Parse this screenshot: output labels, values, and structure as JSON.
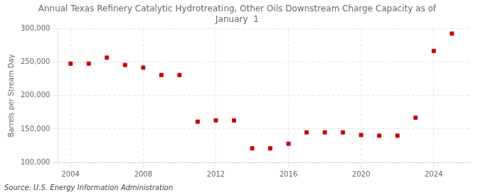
{
  "chart_data": {
    "type": "scatter",
    "title": "Annual Texas Refinery Catalytic Hydrotreating, Other Oils Downstream Charge Capacity as of\nJanuary  1",
    "ylabel": "Barrels per Stream Day",
    "annotations": [
      "Source: U.S. Energy Information Administration"
    ],
    "x": [
      2004,
      2005,
      2006,
      2007,
      2008,
      2009,
      2010,
      2011,
      2012,
      2013,
      2014,
      2015,
      2016,
      2017,
      2018,
      2019,
      2020,
      2021,
      2022,
      2023,
      2024,
      2025
    ],
    "values": [
      248000,
      248000,
      257000,
      246000,
      242000,
      231000,
      231000,
      161000,
      163000,
      163000,
      121000,
      121000,
      128000,
      145000,
      145000,
      145000,
      141000,
      140000,
      140000,
      167000,
      267000,
      293000
    ],
    "color": "#cc0000",
    "marker": "square",
    "xlim": [
      2003.3,
      2026.0
    ],
    "ylim": [
      100000,
      300000
    ],
    "xticks": [
      2004,
      2008,
      2012,
      2016,
      2020,
      2024
    ],
    "yticks": [
      {
        "value": 100000,
        "label": "100,000"
      },
      {
        "value": 150000,
        "label": "150,000"
      },
      {
        "value": 200000,
        "label": "200,000"
      },
      {
        "value": 250000,
        "label": "250,000"
      },
      {
        "value": 300000,
        "label": "300,000"
      }
    ],
    "grid": true
  }
}
